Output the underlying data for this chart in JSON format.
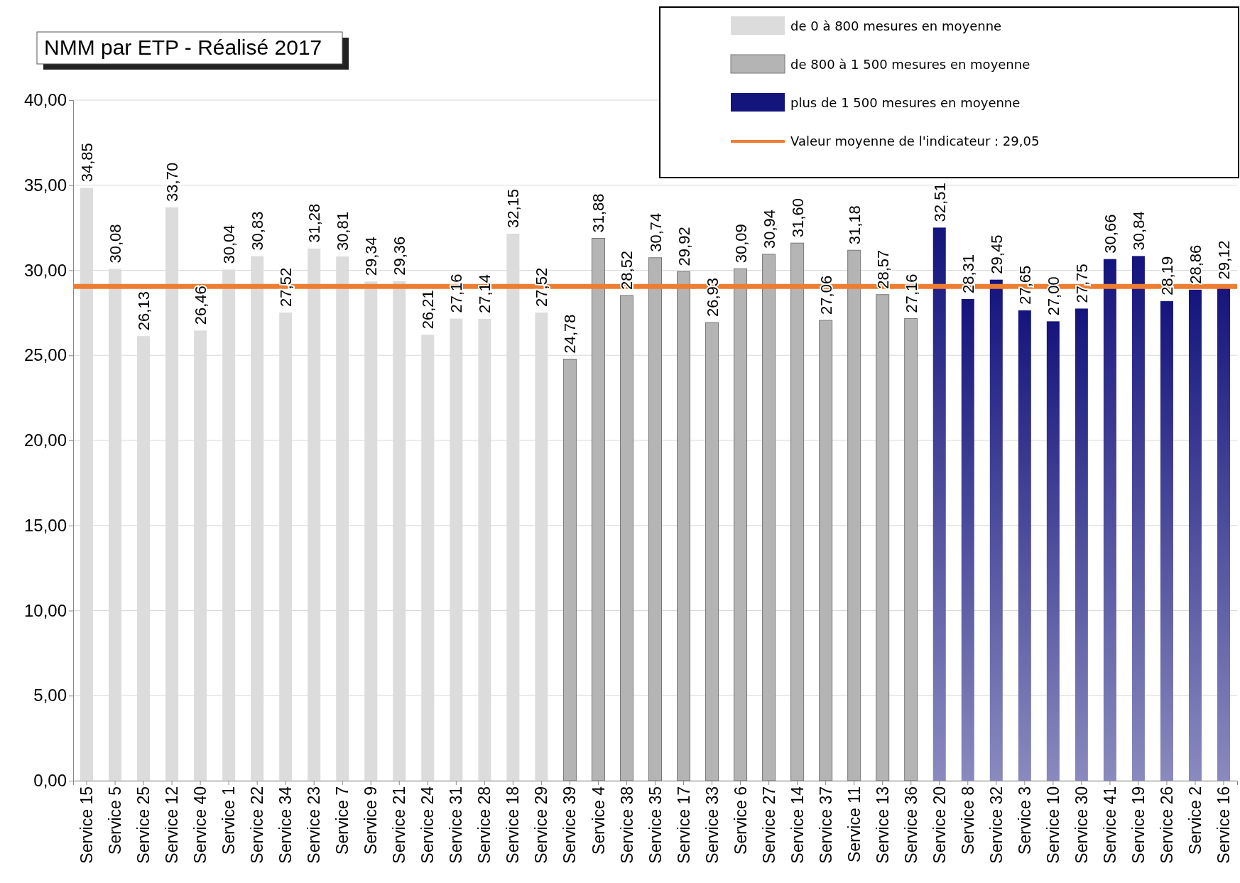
{
  "chart_data": {
    "type": "bar",
    "title": "NMM par ETP - Réalisé 2017",
    "categories": [
      "Service 15",
      "Service 5",
      "Service 25",
      "Service 12",
      "Service 40",
      "Service 1",
      "Service 22",
      "Service 34",
      "Service 23",
      "Service 7",
      "Service 9",
      "Service 21",
      "Service 24",
      "Service 31",
      "Service 28",
      "Service 18",
      "Service 29",
      "Service 39",
      "Service 4",
      "Service 38",
      "Service 35",
      "Service 17",
      "Service 33",
      "Service 6",
      "Service 27",
      "Service 14",
      "Service 37",
      "Service 11",
      "Service 13",
      "Service 36",
      "Service 20",
      "Service 8",
      "Service 32",
      "Service 3",
      "Service 10",
      "Service 30",
      "Service 41",
      "Service 19",
      "Service 26",
      "Service 2",
      "Service 16"
    ],
    "series": [
      {
        "name": "de 0  à 800 mesures en moyenne",
        "color": "#dcdcdc",
        "values": [
          34.85,
          30.08,
          26.13,
          33.7,
          26.46,
          30.04,
          30.83,
          27.52,
          31.28,
          30.81,
          29.34,
          29.36,
          26.21,
          27.16,
          27.14,
          32.15,
          27.52,
          null,
          null,
          null,
          null,
          null,
          null,
          null,
          null,
          null,
          null,
          null,
          null,
          null,
          null,
          null,
          null,
          null,
          null,
          null,
          null,
          null,
          null,
          null,
          null
        ],
        "value_labels": [
          "34,85",
          "30,08",
          "26,13",
          "33,70",
          "26,46",
          "30,04",
          "30,83",
          "27,52",
          "31,28",
          "30,81",
          "29,34",
          "29,36",
          "26,21",
          "27,16",
          "27,14",
          "32,15",
          "27,52",
          null,
          null,
          null,
          null,
          null,
          null,
          null,
          null,
          null,
          null,
          null,
          null,
          null,
          null,
          null,
          null,
          null,
          null,
          null,
          null,
          null,
          null,
          null,
          null
        ]
      },
      {
        "name": "de 800  à 1 500 mesures en moyenne",
        "color": "#b4b4b4",
        "values": [
          null,
          null,
          null,
          null,
          null,
          null,
          null,
          null,
          null,
          null,
          null,
          null,
          null,
          null,
          null,
          null,
          null,
          24.78,
          31.88,
          28.52,
          30.74,
          29.92,
          26.93,
          30.09,
          30.94,
          31.6,
          27.06,
          31.18,
          28.57,
          27.16,
          null,
          null,
          null,
          null,
          null,
          null,
          null,
          null,
          null,
          null,
          null
        ],
        "value_labels": [
          null,
          null,
          null,
          null,
          null,
          null,
          null,
          null,
          null,
          null,
          null,
          null,
          null,
          null,
          null,
          null,
          null,
          "24,78",
          "31,88",
          "28,52",
          "30,74",
          "29,92",
          "26,93",
          "30,09",
          "30,94",
          "31,60",
          "27,06",
          "31,18",
          "28,57",
          "27,16",
          null,
          null,
          null,
          null,
          null,
          null,
          null,
          null,
          null,
          null,
          null
        ]
      },
      {
        "name": "plus de 1 500 mesures en moyenne",
        "color": "#14147d",
        "values": [
          null,
          null,
          null,
          null,
          null,
          null,
          null,
          null,
          null,
          null,
          null,
          null,
          null,
          null,
          null,
          null,
          null,
          null,
          null,
          null,
          null,
          null,
          null,
          null,
          null,
          null,
          null,
          null,
          null,
          null,
          32.51,
          28.31,
          29.45,
          27.65,
          27.0,
          27.75,
          30.66,
          30.84,
          28.19,
          28.86,
          29.12
        ],
        "value_labels": [
          null,
          null,
          null,
          null,
          null,
          null,
          null,
          null,
          null,
          null,
          null,
          null,
          null,
          null,
          null,
          null,
          null,
          null,
          null,
          null,
          null,
          null,
          null,
          null,
          null,
          null,
          null,
          null,
          null,
          null,
          "32,51",
          "28,31",
          "29,45",
          "27,65",
          "27,00",
          "27,75",
          "30,66",
          "30,84",
          "28,19",
          "28,86",
          "29,12"
        ]
      }
    ],
    "ref_lines": [
      {
        "axis": "y",
        "value": 29.05,
        "label": "Valeur moyenne de l'indicateur : 29,05",
        "color": "#ed7d31"
      }
    ],
    "ylim": [
      0,
      40
    ],
    "yticks": [
      {
        "value": 0,
        "label": "0,00"
      },
      {
        "value": 5,
        "label": "5,00"
      },
      {
        "value": 10,
        "label": "10,00"
      },
      {
        "value": 15,
        "label": "15,00"
      },
      {
        "value": 20,
        "label": "20,00"
      },
      {
        "value": 25,
        "label": "25,00"
      },
      {
        "value": 30,
        "label": "30,00"
      },
      {
        "value": 35,
        "label": "35,00"
      },
      {
        "value": 40,
        "label": "40,00"
      }
    ],
    "grid": "y",
    "legend": "top right"
  }
}
